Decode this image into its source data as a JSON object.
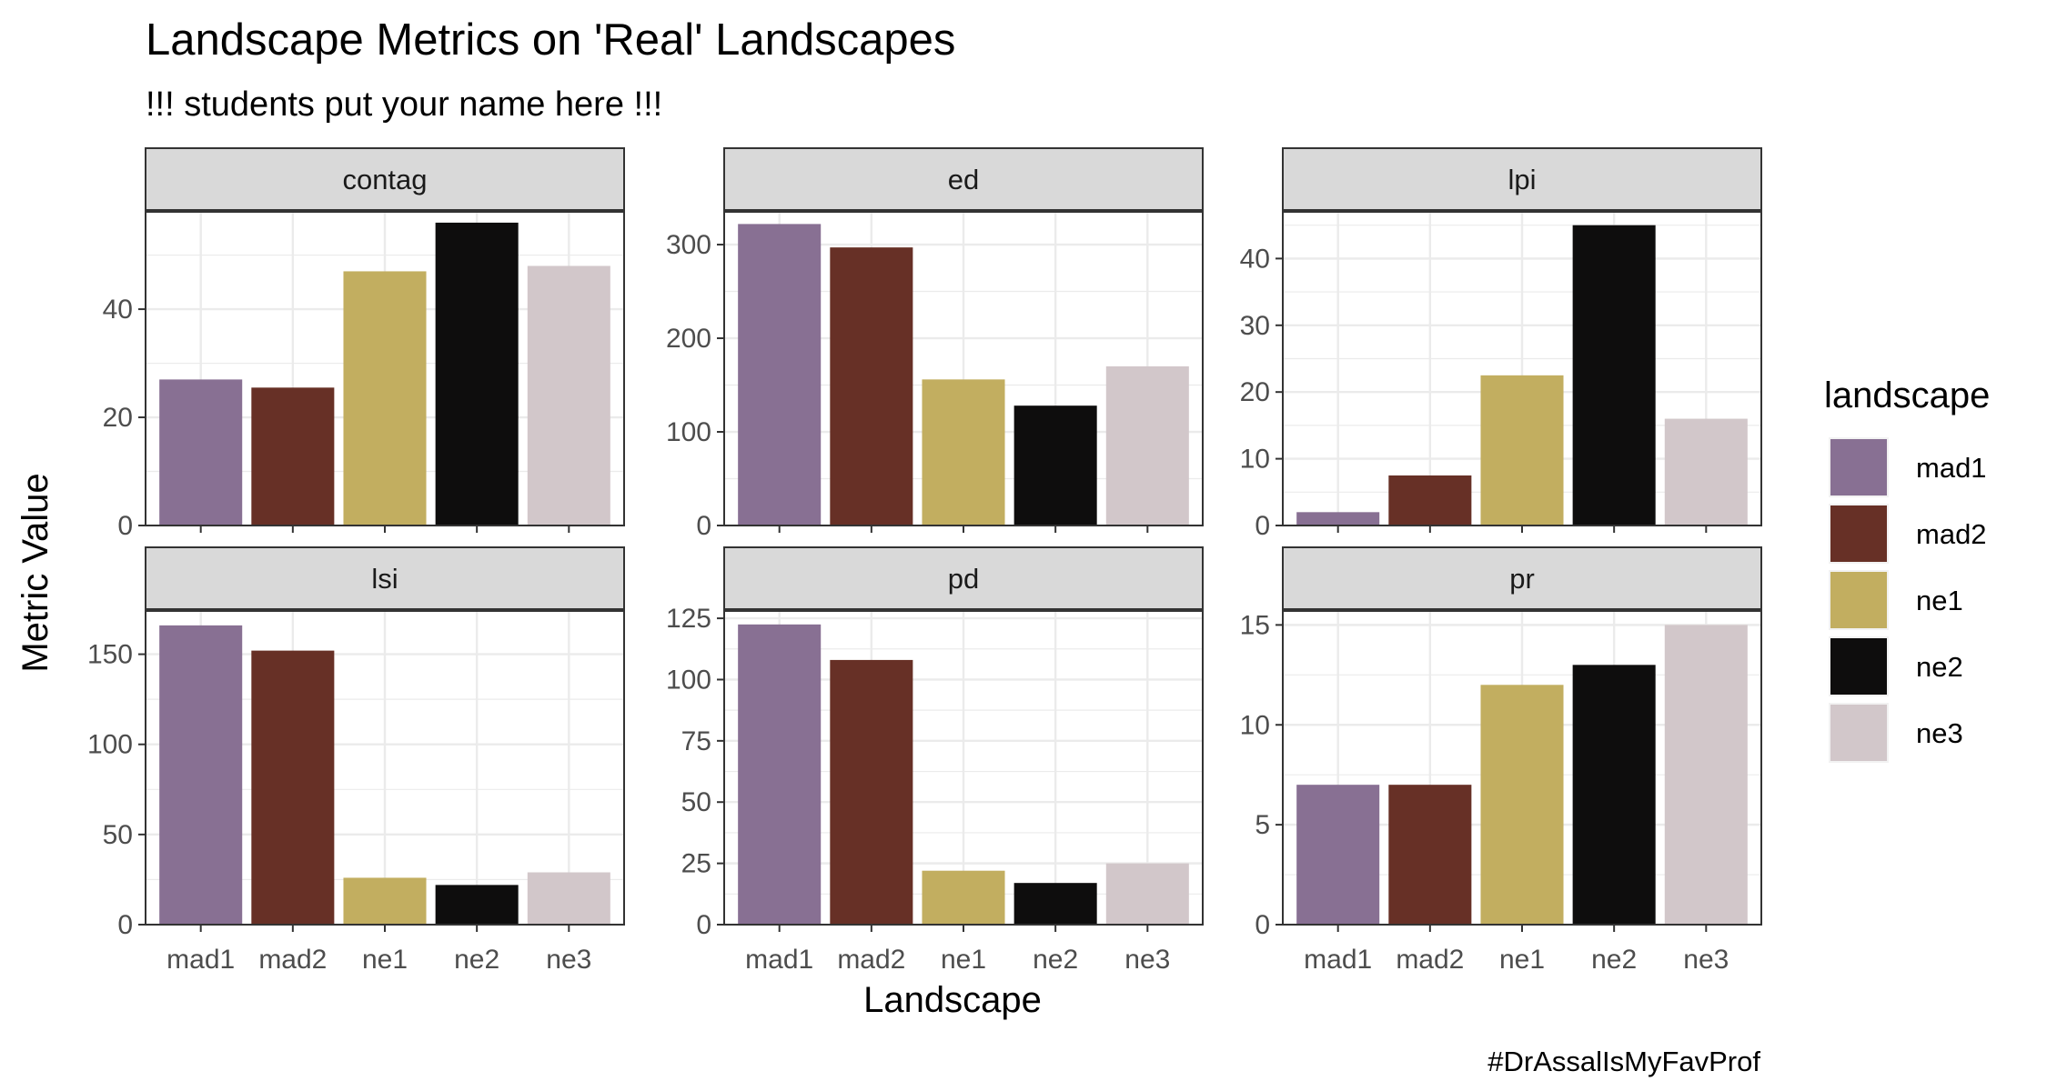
{
  "chart_data": {
    "type": "bar",
    "title": "Landscape Metrics on 'Real' Landscapes",
    "subtitle": "!!! students put your name here !!!",
    "xlabel": "Landscape",
    "ylabel": "Metric Value",
    "caption": "#DrAssalIsMyFavProf",
    "categories": [
      "mad1",
      "mad2",
      "ne1",
      "ne2",
      "ne3"
    ],
    "legend": {
      "title": "landscape",
      "position": "right",
      "entries": [
        "mad1",
        "mad2",
        "ne1",
        "ne2",
        "ne3"
      ]
    },
    "colors": {
      "mad1": "#887093",
      "mad2": "#673026",
      "ne1": "#c2ae60",
      "ne2": "#0e0d0d",
      "ne3": "#d2c7ca"
    },
    "grid": true,
    "facets": [
      {
        "name": "contag",
        "values": [
          27,
          25.5,
          47,
          56,
          48
        ],
        "ylim": [
          0,
          58
        ],
        "yticks": [
          0,
          20,
          40
        ]
      },
      {
        "name": "ed",
        "values": [
          322,
          297,
          156,
          128,
          170
        ],
        "ylim": [
          0,
          335
        ],
        "yticks": [
          0,
          100,
          200,
          300
        ]
      },
      {
        "name": "lpi",
        "values": [
          2,
          7.5,
          22.5,
          45,
          16
        ],
        "ylim": [
          0,
          47
        ],
        "yticks": [
          0,
          10,
          20,
          30,
          40
        ]
      },
      {
        "name": "lsi",
        "values": [
          166,
          152,
          26,
          22,
          29
        ],
        "ylim": [
          0,
          174
        ],
        "yticks": [
          0,
          50,
          100,
          150
        ]
      },
      {
        "name": "pd",
        "values": [
          122.5,
          108,
          22,
          17,
          25
        ],
        "ylim": [
          0,
          128
        ],
        "yticks": [
          0,
          25,
          50,
          75,
          100,
          125
        ]
      },
      {
        "name": "pr",
        "values": [
          7,
          7,
          12,
          13,
          15
        ],
        "ylim": [
          0,
          15.7
        ],
        "yticks": [
          0,
          5,
          10,
          15
        ]
      }
    ]
  }
}
